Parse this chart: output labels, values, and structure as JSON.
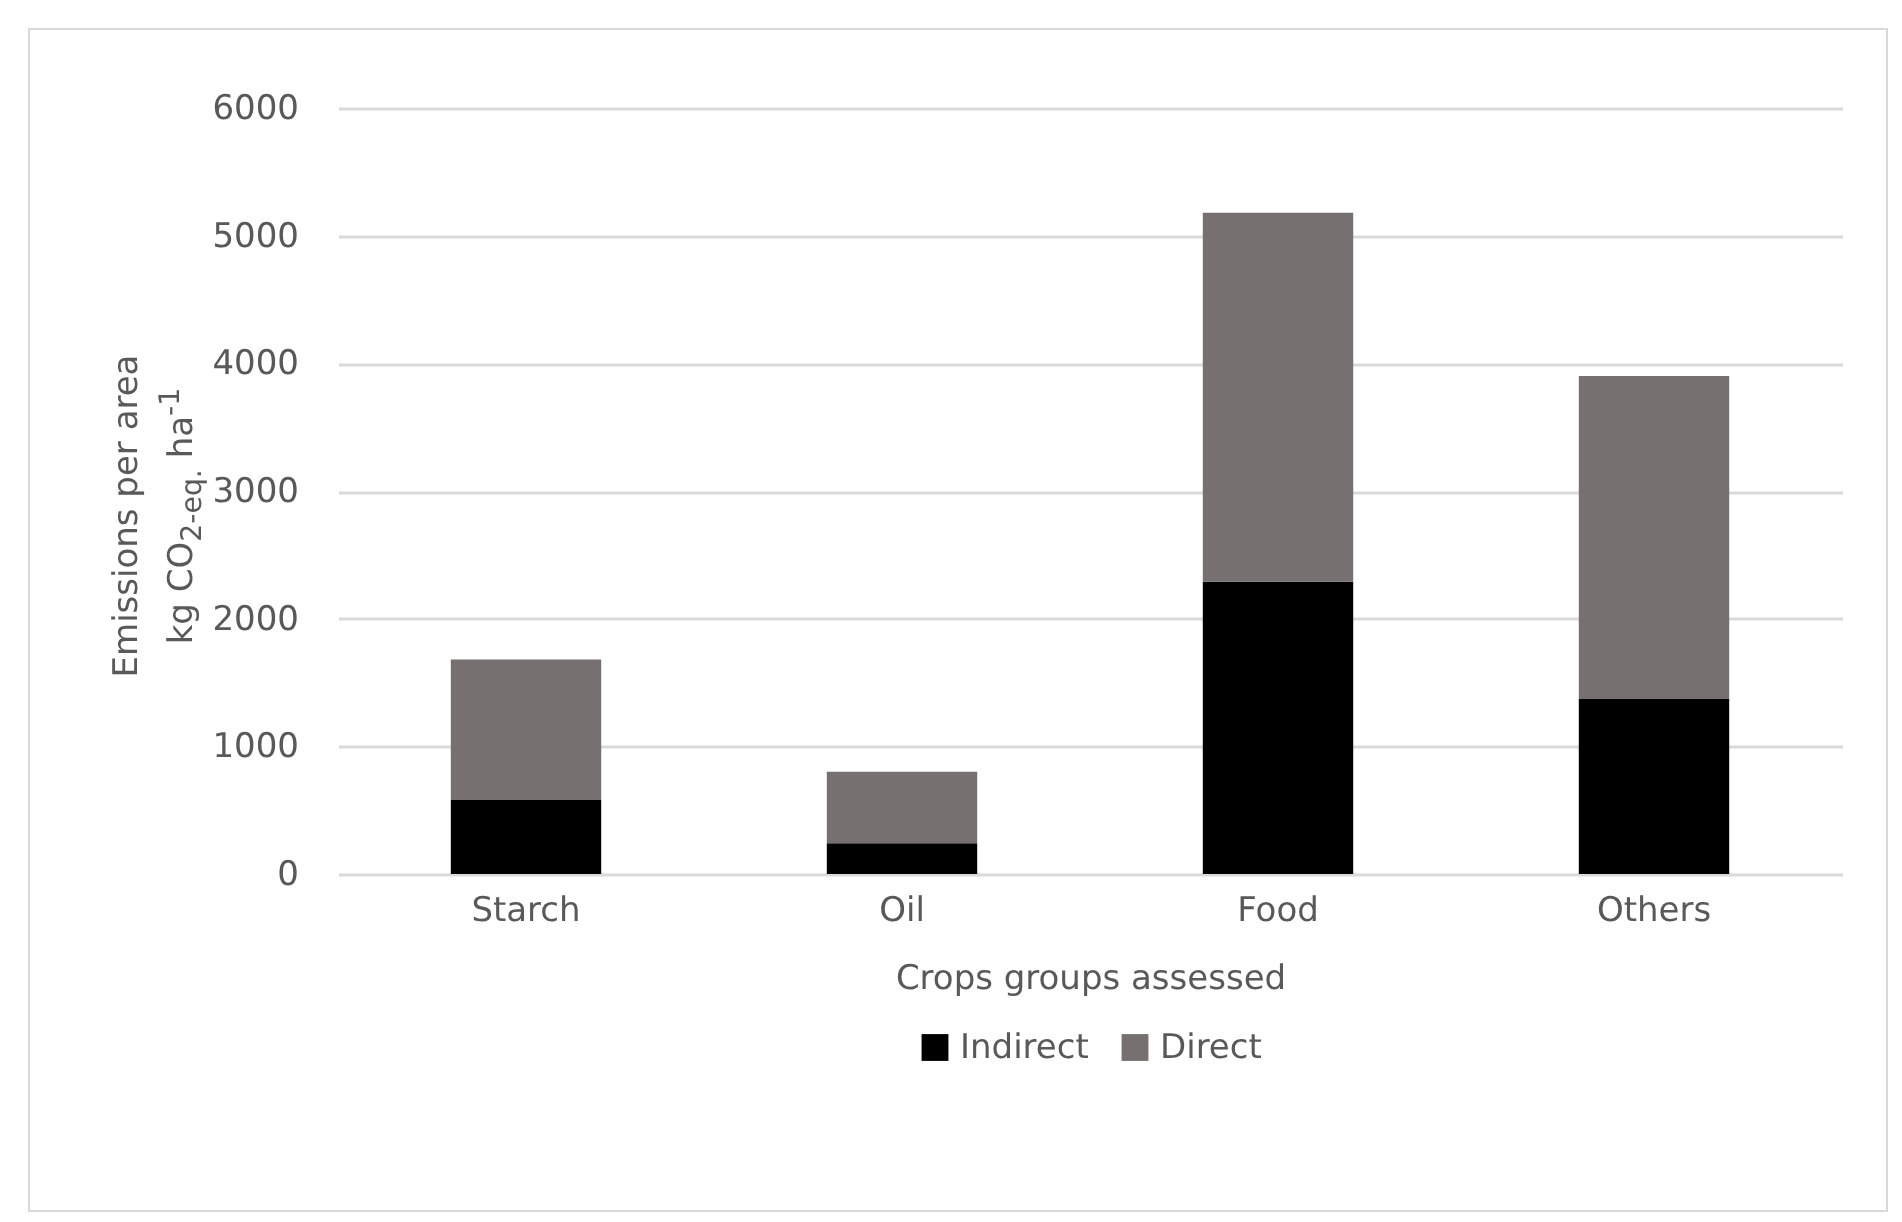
{
  "chart_data": {
    "type": "bar",
    "stacked": true,
    "xlabel": "Crops groups assessed",
    "ylabel": "Emissions per area\nkg CO$_{2-eq.}$ ha$^{-1}$",
    "categories": [
      "Starch",
      "Oil",
      "Food",
      "Others"
    ],
    "series": [
      {
        "name": "Indirect",
        "color": "#000000",
        "values": [
          580,
          240,
          2290,
          1370
        ]
      },
      {
        "name": "Direct",
        "color": "#767170",
        "values": [
          1100,
          560,
          2890,
          2530
        ]
      }
    ],
    "ylim": [
      0,
      6000
    ],
    "yticks": [
      0,
      1000,
      2000,
      3000,
      4000,
      5000,
      6000
    ],
    "grid": "y",
    "legend": "bottom"
  }
}
